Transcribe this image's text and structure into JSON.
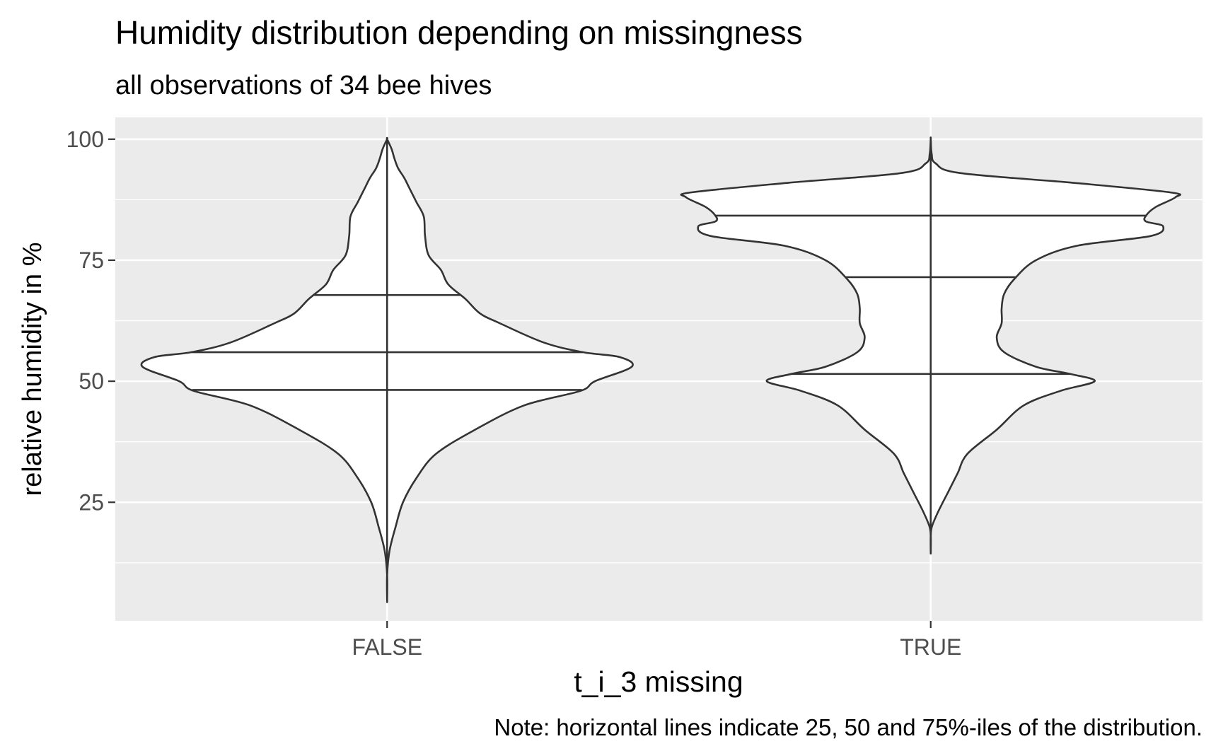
{
  "chart_data": {
    "type": "violin",
    "title": "Humidity distribution depending on missingness",
    "subtitle": "all observations of 34 bee hives",
    "xlabel": "t_i_3 missing",
    "ylabel": "relative humidity in %",
    "caption": "Note: horizontal lines indicate 25, 50 and 75%-iles of the distribution.",
    "categories": [
      "FALSE",
      "TRUE"
    ],
    "ylim": [
      0.5,
      104.5
    ],
    "yticks": [
      25,
      50,
      75,
      100
    ],
    "grid": true,
    "colors": {
      "panel": "#EBEBEB",
      "grid": "#FFFFFF",
      "violin_fill": "#FFFFFF",
      "violin_line": "#333333",
      "text": "#000000",
      "tick_text": "#4D4D4D"
    },
    "series": [
      {
        "category": "FALSE",
        "range": [
          5,
          100
        ],
        "quantiles": {
          "q25": 48.2,
          "q50": 56.0,
          "q75": 67.8
        },
        "density": [
          [
            5,
            0.0
          ],
          [
            10,
            0.0
          ],
          [
            15,
            0.01
          ],
          [
            20,
            0.035
          ],
          [
            25,
            0.065
          ],
          [
            30,
            0.12
          ],
          [
            35,
            0.2
          ],
          [
            40,
            0.36
          ],
          [
            45,
            0.56
          ],
          [
            48,
            0.79
          ],
          [
            50,
            0.85
          ],
          [
            53,
            1.0
          ],
          [
            55,
            0.95
          ],
          [
            56,
            0.8
          ],
          [
            58,
            0.64
          ],
          [
            62,
            0.46
          ],
          [
            64,
            0.38
          ],
          [
            67,
            0.32
          ],
          [
            70,
            0.25
          ],
          [
            73,
            0.22
          ],
          [
            76,
            0.17
          ],
          [
            80,
            0.155
          ],
          [
            84,
            0.15
          ],
          [
            87,
            0.12
          ],
          [
            90,
            0.09
          ],
          [
            92,
            0.07
          ],
          [
            94,
            0.045
          ],
          [
            96,
            0.03
          ],
          [
            98,
            0.018
          ],
          [
            100,
            0.0
          ]
        ]
      },
      {
        "category": "TRUE",
        "range": [
          14.8,
          100
        ],
        "quantiles": {
          "q25": 51.5,
          "q50": 71.5,
          "q75": 84.2
        },
        "density": [
          [
            14.8,
            0.0
          ],
          [
            18,
            0.0
          ],
          [
            20,
            0.005
          ],
          [
            23,
            0.03
          ],
          [
            27,
            0.07
          ],
          [
            31,
            0.11
          ],
          [
            35,
            0.15
          ],
          [
            40,
            0.27
          ],
          [
            45,
            0.38
          ],
          [
            48,
            0.53
          ],
          [
            50,
            0.67
          ],
          [
            51.5,
            0.57
          ],
          [
            53,
            0.43
          ],
          [
            56,
            0.3
          ],
          [
            59,
            0.27
          ],
          [
            62,
            0.29
          ],
          [
            65,
            0.29
          ],
          [
            68,
            0.3
          ],
          [
            71,
            0.34
          ],
          [
            75,
            0.43
          ],
          [
            78,
            0.6
          ],
          [
            80,
            0.9
          ],
          [
            82,
            0.95
          ],
          [
            83,
            0.88
          ],
          [
            84.2,
            0.88
          ],
          [
            86,
            0.92
          ],
          [
            88,
            1.0
          ],
          [
            89,
            0.98
          ],
          [
            91,
            0.58
          ],
          [
            93,
            0.12
          ],
          [
            95,
            0.02
          ],
          [
            97,
            0.004
          ],
          [
            100,
            0.0
          ]
        ]
      }
    ]
  }
}
